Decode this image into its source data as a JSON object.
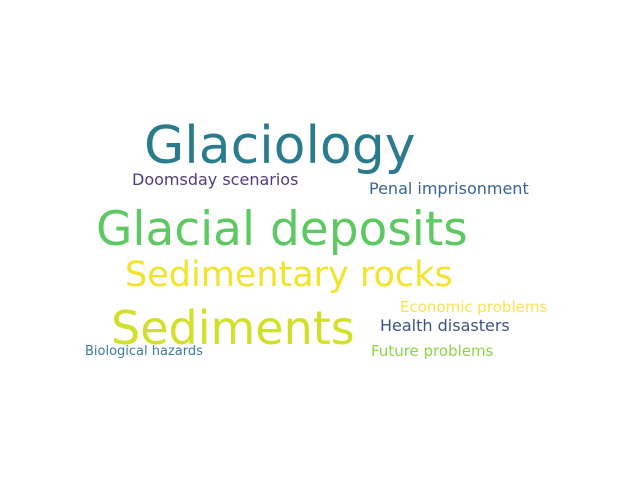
{
  "words": [
    {
      "id": "glaciology",
      "text": "Glaciology",
      "color": "#2a7b8e"
    },
    {
      "id": "doomsday",
      "text": "Doomsday scenarios",
      "color": "#4d3d7e"
    },
    {
      "id": "penal",
      "text": "Penal imprisonment",
      "color": "#3a6592"
    },
    {
      "id": "glacial",
      "text": "Glacial deposits",
      "color": "#5ec962"
    },
    {
      "id": "sedrocks",
      "text": "Sedimentary rocks",
      "color": "#f3e32b"
    },
    {
      "id": "economic",
      "text": "Economic problems",
      "color": "#fde34b"
    },
    {
      "id": "sediments",
      "text": "Sediments",
      "color": "#d2e02a"
    },
    {
      "id": "health",
      "text": "Health disasters",
      "color": "#3b5387"
    },
    {
      "id": "bio",
      "text": "Biological hazards",
      "color": "#3f7aa3"
    },
    {
      "id": "future",
      "text": "Future problems",
      "color": "#8bd646"
    }
  ]
}
